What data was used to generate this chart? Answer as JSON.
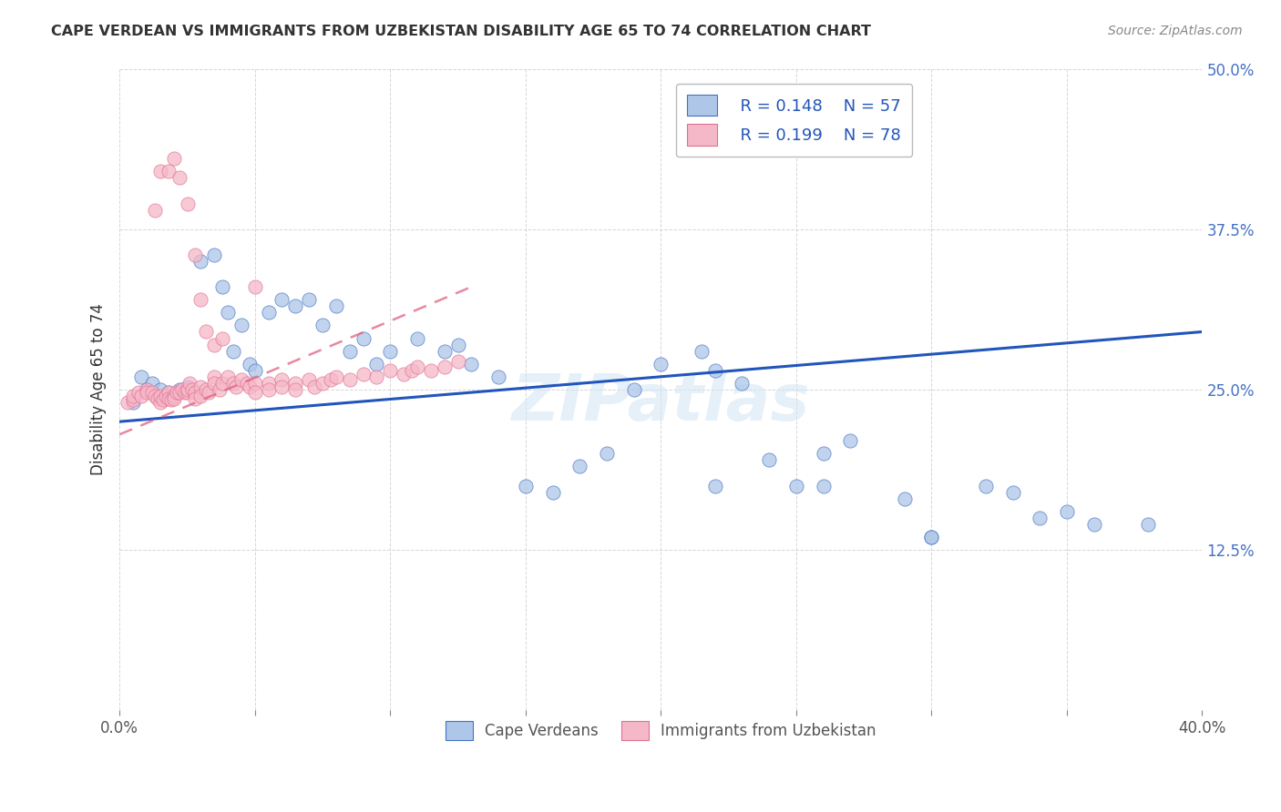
{
  "title": "CAPE VERDEAN VS IMMIGRANTS FROM UZBEKISTAN DISABILITY AGE 65 TO 74 CORRELATION CHART",
  "source": "Source: ZipAtlas.com",
  "ylabel": "Disability Age 65 to 74",
  "xlim": [
    0.0,
    0.4
  ],
  "ylim": [
    0.0,
    0.5
  ],
  "xticks": [
    0.0,
    0.05,
    0.1,
    0.15,
    0.2,
    0.25,
    0.3,
    0.35,
    0.4
  ],
  "yticks": [
    0.0,
    0.125,
    0.25,
    0.375,
    0.5
  ],
  "legend_r1": "R = 0.148",
  "legend_n1": "N = 57",
  "legend_r2": "R = 0.199",
  "legend_n2": "N = 78",
  "color_blue": "#aec6e8",
  "color_pink": "#f5b8c8",
  "edge_blue": "#4472c4",
  "edge_pink": "#e07090",
  "watermark": "ZIPatlas",
  "blue_line_color": "#2255bb",
  "pink_line_color": "#e06080",
  "blue_x": [
    0.005,
    0.008,
    0.01,
    0.012,
    0.015,
    0.018,
    0.02,
    0.022,
    0.025,
    0.028,
    0.03,
    0.035,
    0.038,
    0.04,
    0.042,
    0.045,
    0.048,
    0.05,
    0.055,
    0.06,
    0.065,
    0.07,
    0.075,
    0.08,
    0.085,
    0.09,
    0.095,
    0.1,
    0.11,
    0.12,
    0.125,
    0.13,
    0.14,
    0.15,
    0.16,
    0.17,
    0.18,
    0.19,
    0.2,
    0.215,
    0.22,
    0.23,
    0.24,
    0.25,
    0.26,
    0.27,
    0.29,
    0.3,
    0.32,
    0.34,
    0.36,
    0.38,
    0.22,
    0.26,
    0.3,
    0.33,
    0.35
  ],
  "blue_y": [
    0.24,
    0.26,
    0.25,
    0.255,
    0.25,
    0.248,
    0.245,
    0.25,
    0.252,
    0.248,
    0.35,
    0.355,
    0.33,
    0.31,
    0.28,
    0.3,
    0.27,
    0.265,
    0.31,
    0.32,
    0.315,
    0.32,
    0.3,
    0.315,
    0.28,
    0.29,
    0.27,
    0.28,
    0.29,
    0.28,
    0.285,
    0.27,
    0.26,
    0.175,
    0.17,
    0.19,
    0.2,
    0.25,
    0.27,
    0.28,
    0.265,
    0.255,
    0.195,
    0.175,
    0.2,
    0.21,
    0.165,
    0.135,
    0.175,
    0.15,
    0.145,
    0.145,
    0.175,
    0.175,
    0.135,
    0.17,
    0.155
  ],
  "pink_x": [
    0.003,
    0.005,
    0.005,
    0.007,
    0.008,
    0.01,
    0.01,
    0.012,
    0.013,
    0.014,
    0.015,
    0.015,
    0.016,
    0.017,
    0.018,
    0.018,
    0.019,
    0.02,
    0.02,
    0.021,
    0.022,
    0.023,
    0.024,
    0.025,
    0.025,
    0.026,
    0.027,
    0.028,
    0.028,
    0.03,
    0.03,
    0.032,
    0.033,
    0.035,
    0.035,
    0.037,
    0.038,
    0.04,
    0.042,
    0.043,
    0.045,
    0.047,
    0.048,
    0.05,
    0.05,
    0.055,
    0.055,
    0.06,
    0.06,
    0.065,
    0.065,
    0.07,
    0.072,
    0.075,
    0.078,
    0.08,
    0.085,
    0.09,
    0.095,
    0.1,
    0.105,
    0.108,
    0.11,
    0.115,
    0.12,
    0.125,
    0.013,
    0.015,
    0.018,
    0.02,
    0.022,
    0.025,
    0.028,
    0.03,
    0.032,
    0.035,
    0.038,
    0.05
  ],
  "pink_y": [
    0.24,
    0.242,
    0.245,
    0.248,
    0.245,
    0.25,
    0.248,
    0.248,
    0.245,
    0.243,
    0.24,
    0.245,
    0.242,
    0.245,
    0.248,
    0.243,
    0.242,
    0.245,
    0.243,
    0.248,
    0.248,
    0.25,
    0.248,
    0.248,
    0.25,
    0.255,
    0.25,
    0.248,
    0.243,
    0.252,
    0.245,
    0.25,
    0.248,
    0.26,
    0.255,
    0.25,
    0.255,
    0.26,
    0.255,
    0.252,
    0.258,
    0.255,
    0.252,
    0.255,
    0.248,
    0.255,
    0.25,
    0.258,
    0.252,
    0.255,
    0.25,
    0.258,
    0.252,
    0.255,
    0.258,
    0.26,
    0.258,
    0.262,
    0.26,
    0.265,
    0.262,
    0.265,
    0.268,
    0.265,
    0.268,
    0.272,
    0.39,
    0.42,
    0.42,
    0.43,
    0.415,
    0.395,
    0.355,
    0.32,
    0.295,
    0.285,
    0.29,
    0.33
  ],
  "blue_line_x": [
    0.0,
    0.4
  ],
  "blue_line_y": [
    0.225,
    0.295
  ],
  "pink_line_x": [
    0.0,
    0.13
  ],
  "pink_line_y": [
    0.215,
    0.33
  ]
}
